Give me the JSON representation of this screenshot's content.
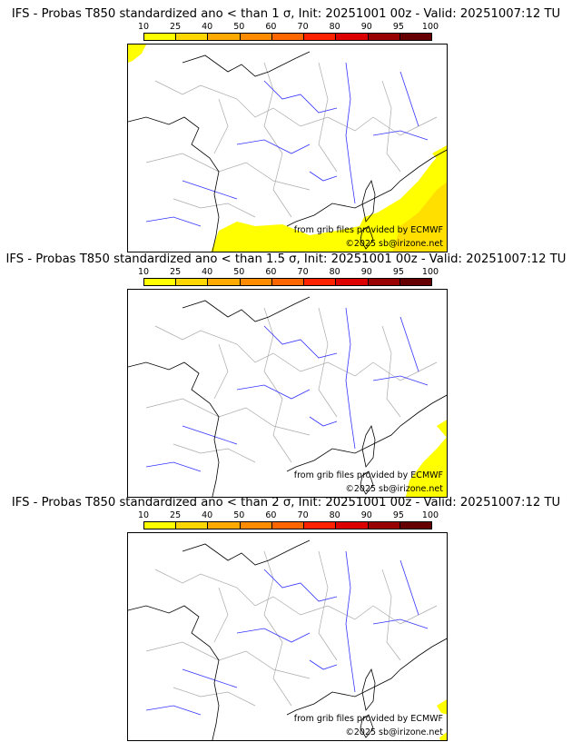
{
  "panels": [
    {
      "title": "IFS - Probas T850  standardized ano < than 1 σ, Init: 20251001 00z - Valid: 20251007:12 TU",
      "coverage": "large"
    },
    {
      "title": "IFS - Probas T850  standardized ano < than 1.5 σ, Init: 20251001 00z - Valid: 20251007:12 TU",
      "coverage": "medium"
    },
    {
      "title": "IFS - Probas T850  standardized ano < than 2 σ, Init: 20251001 00z - Valid: 20251007:12 TU",
      "coverage": "small"
    }
  ],
  "colorbar": {
    "ticks": [
      "10",
      "25",
      "40",
      "50",
      "60",
      "70",
      "80",
      "90",
      "95",
      "100"
    ],
    "colors": [
      "#ffff00",
      "#ffd700",
      "#ffaa00",
      "#ff8c00",
      "#ff6600",
      "#ff2200",
      "#dd0000",
      "#990000",
      "#660000"
    ]
  },
  "credits": {
    "source": "from grib files provided by ECMWF",
    "copyright": "©2025 sb@irizone.net"
  }
}
